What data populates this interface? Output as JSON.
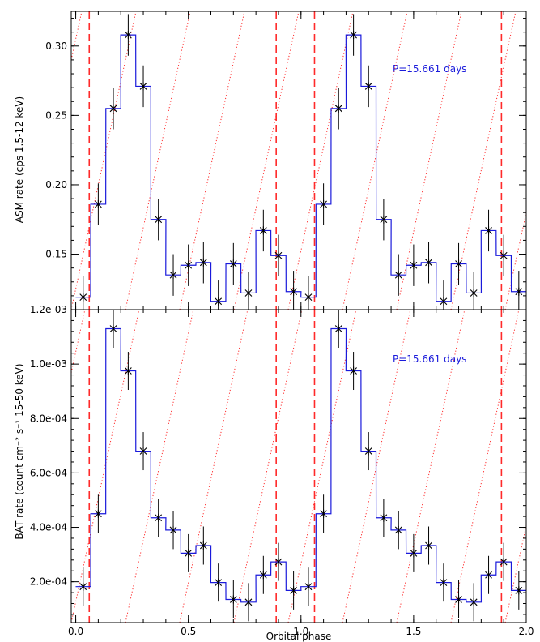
{
  "colors": {
    "step": "#1a1adb",
    "marker": "#000000",
    "phase_line": "#ff2a2a",
    "annotation": "#1a1adb"
  },
  "chart_data": [
    {
      "type": "line",
      "panel": "top",
      "ylabel": "ASM rate (cps 1.5-12 keV)",
      "xlabel": "",
      "annotation": "P=15.661 days",
      "xlim": [
        -0.02,
        2.0
      ],
      "ylim": [
        0.11,
        0.325
      ],
      "yticks": [
        0.15,
        0.2,
        0.25,
        0.3
      ],
      "ytick_labels": [
        "0.15",
        "0.20",
        "0.25",
        "0.30"
      ],
      "xticks": [
        0.0,
        0.5,
        1.0,
        1.5,
        2.0
      ],
      "series": [
        {
          "x": [
            0.033,
            0.1,
            0.167,
            0.233,
            0.3,
            0.367,
            0.433,
            0.5,
            0.567,
            0.633,
            0.7,
            0.767,
            0.833,
            0.9,
            0.967,
            1.033,
            1.1,
            1.167,
            1.233,
            1.3,
            1.367,
            1.433,
            1.5,
            1.567,
            1.633,
            1.7,
            1.767,
            1.833,
            1.9,
            1.967
          ],
          "y": [
            0.119,
            0.186,
            0.255,
            0.308,
            0.271,
            0.175,
            0.135,
            0.142,
            0.144,
            0.116,
            0.143,
            0.122,
            0.167,
            0.149,
            0.123,
            0.119,
            0.186,
            0.255,
            0.308,
            0.271,
            0.175,
            0.135,
            0.142,
            0.144,
            0.116,
            0.143,
            0.122,
            0.167,
            0.149,
            0.123
          ],
          "err": [
            0.015,
            0.015,
            0.015,
            0.015,
            0.015,
            0.015,
            0.015,
            0.015,
            0.015,
            0.015,
            0.015,
            0.015,
            0.015,
            0.015,
            0.015,
            0.015,
            0.015,
            0.015,
            0.015,
            0.015,
            0.015,
            0.015,
            0.015,
            0.015,
            0.015,
            0.015,
            0.015,
            0.015,
            0.015,
            0.015
          ]
        }
      ],
      "vlines": [
        0.06,
        0.89,
        1.06,
        1.89
      ]
    },
    {
      "type": "line",
      "panel": "bottom",
      "ylabel": "BAT rate (count cm⁻² s⁻¹ 15-50 keV)",
      "xlabel": "Orbital phase",
      "annotation": "P=15.661 days",
      "xlim": [
        -0.02,
        2.0
      ],
      "ylim": [
        5e-05,
        0.0012
      ],
      "yticks": [
        0.0002,
        0.0004,
        0.0006,
        0.0008,
        0.001,
        0.0012
      ],
      "ytick_labels": [
        "2.0e-04",
        "4.0e-04",
        "6.0e-04",
        "8.0e-04",
        "1.0e-03",
        "1.2e-03"
      ],
      "xticks": [
        0.0,
        0.5,
        1.0,
        1.5,
        2.0
      ],
      "xtick_labels": [
        "0.0",
        "0.5",
        "1.0",
        "1.5",
        "2.0"
      ],
      "series": [
        {
          "x": [
            0.033,
            0.1,
            0.167,
            0.233,
            0.3,
            0.367,
            0.433,
            0.5,
            0.567,
            0.633,
            0.7,
            0.767,
            0.833,
            0.9,
            0.967,
            1.033,
            1.1,
            1.167,
            1.233,
            1.3,
            1.367,
            1.433,
            1.5,
            1.567,
            1.633,
            1.7,
            1.767,
            1.833,
            1.9,
            1.967
          ],
          "y": [
            0.000182,
            0.00045,
            0.00113,
            0.000975,
            0.00068,
            0.000435,
            0.00039,
            0.000305,
            0.000333,
            0.000197,
            0.000135,
            0.000125,
            0.000225,
            0.000273,
            0.000168,
            0.000182,
            0.00045,
            0.00113,
            0.000975,
            0.00068,
            0.000435,
            0.00039,
            0.000305,
            0.000333,
            0.000197,
            0.000135,
            0.000125,
            0.000225,
            0.000273,
            0.000168
          ],
          "err": [
            7e-05,
            7e-05,
            7e-05,
            7e-05,
            7e-05,
            7e-05,
            7e-05,
            7e-05,
            7e-05,
            7e-05,
            7e-05,
            7e-05,
            7e-05,
            7e-05,
            7e-05,
            7e-05,
            7e-05,
            7e-05,
            7e-05,
            7e-05,
            7e-05,
            7e-05,
            7e-05,
            7e-05,
            7e-05,
            7e-05,
            7e-05,
            7e-05,
            7e-05,
            7e-05
          ]
        }
      ],
      "vlines": [
        0.06,
        0.89,
        1.06,
        1.89
      ]
    }
  ]
}
